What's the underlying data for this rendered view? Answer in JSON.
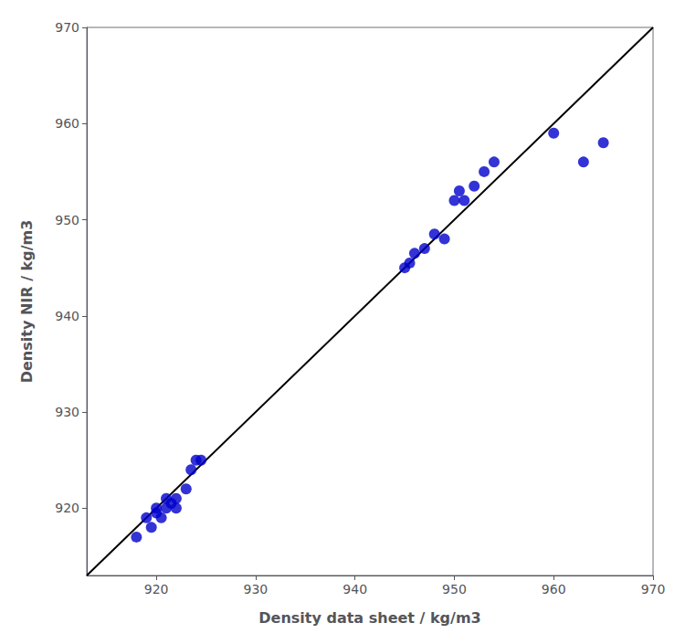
{
  "chart_data": {
    "type": "scatter",
    "xlabel": "Density data sheet / kg/m3",
    "ylabel": "Density NIR / kg/m3",
    "xlim": [
      913,
      970
    ],
    "ylim": [
      913,
      970
    ],
    "xticks": [
      920,
      930,
      940,
      950,
      960,
      970
    ],
    "yticks": [
      920,
      930,
      940,
      950,
      960,
      970
    ],
    "grid": false,
    "series": [
      {
        "type": "scatter",
        "color": "#0000CC",
        "x": [
          918,
          919,
          919.5,
          920,
          920,
          920.5,
          921,
          921,
          921.5,
          922,
          922,
          923,
          923.5,
          924,
          924.5,
          945,
          945.5,
          946,
          947,
          948,
          949,
          950,
          950.5,
          951,
          952,
          953,
          954,
          960,
          963,
          965
        ],
        "values": [
          917,
          919,
          918,
          919.5,
          920,
          919,
          920,
          921,
          920.5,
          921,
          920,
          922,
          924,
          925,
          925,
          945,
          945.5,
          946.5,
          947,
          948.5,
          948,
          952,
          953,
          952,
          953.5,
          955,
          956,
          959,
          956,
          958
        ]
      },
      {
        "type": "line",
        "color": "#000000",
        "x": [
          913,
          970
        ],
        "values": [
          913,
          970
        ]
      }
    ]
  }
}
